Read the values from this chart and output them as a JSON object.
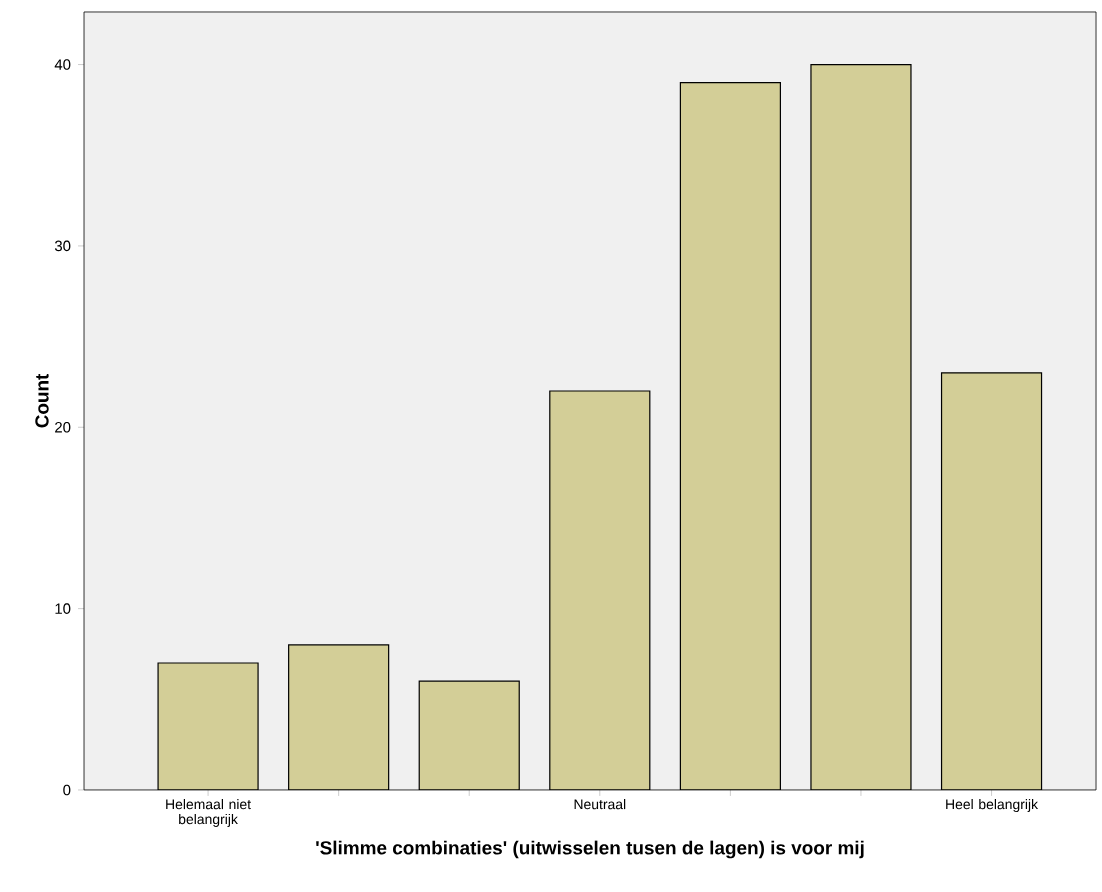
{
  "chart_data": {
    "type": "bar",
    "categories": [
      "Helemaal niet belangrijk",
      null,
      null,
      "Neutraal",
      null,
      null,
      "Heel belangrijk"
    ],
    "values": [
      7,
      8,
      6,
      22,
      39,
      40,
      23
    ],
    "color": "#d3ce97",
    "ylim": [
      0,
      42.9
    ],
    "yticks": [
      0,
      10,
      20,
      30,
      40
    ],
    "xlabel": "'Slimme combinaties' (uitwisselen tusen de lagen) is voor mij",
    "ylabel": "Count"
  }
}
